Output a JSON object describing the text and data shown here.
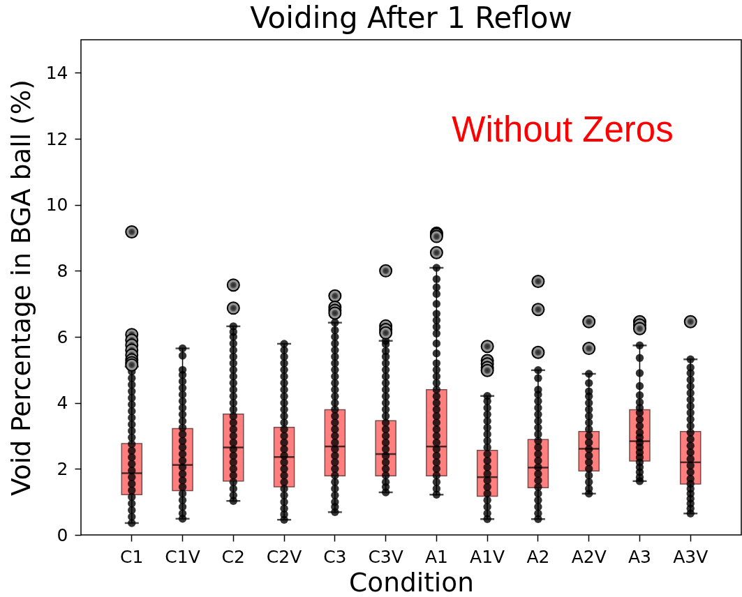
{
  "chart_data": {
    "type": "box",
    "title": "Voiding After 1 Reflow",
    "xlabel": "Condition",
    "ylabel": "Void Percentage in BGA ball (%)",
    "annotations": [
      "Without Zeros"
    ],
    "categories": [
      "C1",
      "C1V",
      "C2",
      "C2V",
      "C3",
      "C3V",
      "A1",
      "A1V",
      "A2",
      "A2V",
      "A3",
      "A3V"
    ],
    "ylim": [
      0,
      15
    ],
    "yticks": [
      0,
      2,
      4,
      6,
      8,
      10,
      12,
      14
    ],
    "series": [
      {
        "type": "box",
        "color": "#ff7f7f",
        "boxes": [
          {
            "low": 0.36,
            "q1": 1.22,
            "median": 1.87,
            "q3": 2.77,
            "high": 5.1,
            "outliers": [
              9.18,
              6.07,
              5.9,
              5.75,
              5.6,
              5.45,
              5.3,
              5.22,
              5.15
            ]
          },
          {
            "low": 0.49,
            "q1": 1.34,
            "median": 2.12,
            "q3": 3.22,
            "high": 5.65
          },
          {
            "low": 1.03,
            "q1": 1.63,
            "median": 2.65,
            "q3": 3.66,
            "high": 6.32,
            "outliers": [
              7.57,
              6.87
            ]
          },
          {
            "low": 0.46,
            "q1": 1.46,
            "median": 2.36,
            "q3": 3.26,
            "high": 5.79
          },
          {
            "low": 0.69,
            "q1": 1.79,
            "median": 2.68,
            "q3": 3.79,
            "high": 6.43,
            "outliers": [
              7.24,
              6.9,
              6.8,
              6.72
            ]
          },
          {
            "low": 1.29,
            "q1": 1.79,
            "median": 2.45,
            "q3": 3.46,
            "high": 5.88,
            "outliers": [
              8.0,
              6.33,
              6.22,
              6.12
            ]
          },
          {
            "low": 1.22,
            "q1": 1.79,
            "median": 2.68,
            "q3": 4.4,
            "high": 8.09,
            "outliers": [
              9.14,
              9.1,
              9.04,
              8.55
            ]
          },
          {
            "low": 0.48,
            "q1": 1.17,
            "median": 1.75,
            "q3": 2.56,
            "high": 4.21,
            "outliers": [
              5.71,
              5.28,
              5.18,
              5.07,
              4.98
            ]
          },
          {
            "low": 0.48,
            "q1": 1.43,
            "median": 2.04,
            "q3": 2.89,
            "high": 4.99,
            "outliers": [
              7.68,
              6.83,
              5.53
            ]
          },
          {
            "low": 1.25,
            "q1": 1.94,
            "median": 2.61,
            "q3": 3.13,
            "high": 4.88,
            "outliers": [
              6.46,
              5.65
            ]
          },
          {
            "low": 1.63,
            "q1": 2.24,
            "median": 2.84,
            "q3": 3.79,
            "high": 5.74,
            "outliers": [
              6.46,
              6.36,
              6.25
            ]
          },
          {
            "low": 0.65,
            "q1": 1.54,
            "median": 2.2,
            "q3": 3.13,
            "high": 5.32,
            "outliers": [
              6.46
            ]
          }
        ]
      },
      {
        "type": "scatter",
        "color": "#000000",
        "marker": "circle",
        "x": [
          "C1",
          "C1",
          "C1",
          "C1",
          "C1",
          "C1",
          "C1",
          "C1",
          "C1",
          "C1",
          "C1",
          "C1",
          "C1",
          "C1",
          "C1",
          "C1",
          "C1",
          "C1",
          "C1",
          "C1",
          "C1",
          "C1",
          "C1",
          "C1",
          "C1V",
          "C1V",
          "C1V",
          "C1V",
          "C1V",
          "C1V",
          "C1V",
          "C1V",
          "C1V",
          "C1V",
          "C1V",
          "C1V",
          "C1V",
          "C1V",
          "C1V",
          "C1V",
          "C1V",
          "C1V",
          "C1V",
          "C1V",
          "C1V",
          "C1V",
          "C1V",
          "C1V",
          "C1V",
          "C1V",
          "C2",
          "C2",
          "C2",
          "C2",
          "C2",
          "C2",
          "C2",
          "C2",
          "C2",
          "C2",
          "C2",
          "C2",
          "C2",
          "C2",
          "C2",
          "C2",
          "C2",
          "C2",
          "C2",
          "C2",
          "C2",
          "C2",
          "C2",
          "C2",
          "C2",
          "C2",
          "C2",
          "C2",
          "C2V",
          "C2V",
          "C2V",
          "C2V",
          "C2V",
          "C2V",
          "C2V",
          "C2V",
          "C2V",
          "C2V",
          "C2V",
          "C2V",
          "C2V",
          "C2V",
          "C2V",
          "C2V",
          "C2V",
          "C2V",
          "C2V",
          "C2V",
          "C2V",
          "C2V",
          "C2V",
          "C2V",
          "C2V",
          "C2V",
          "C2V",
          "C2V",
          "C3",
          "C3",
          "C3",
          "C3",
          "C3",
          "C3",
          "C3",
          "C3",
          "C3",
          "C3",
          "C3",
          "C3",
          "C3",
          "C3",
          "C3",
          "C3",
          "C3",
          "C3",
          "C3",
          "C3",
          "C3",
          "C3",
          "C3",
          "C3",
          "C3",
          "C3",
          "C3",
          "C3",
          "C3",
          "C3",
          "C3V",
          "C3V",
          "C3V",
          "C3V",
          "C3V",
          "C3V",
          "C3V",
          "C3V",
          "C3V",
          "C3V",
          "C3V",
          "C3V",
          "C3V",
          "C3V",
          "C3V",
          "C3V",
          "C3V",
          "C3V",
          "C3V",
          "C3V",
          "C3V",
          "C3V",
          "C3V",
          "C3V",
          "C3V",
          "A1",
          "A1",
          "A1",
          "A1",
          "A1",
          "A1",
          "A1",
          "A1",
          "A1",
          "A1",
          "A1",
          "A1",
          "A1",
          "A1",
          "A1",
          "A1",
          "A1",
          "A1",
          "A1",
          "A1",
          "A1",
          "A1",
          "A1",
          "A1",
          "A1",
          "A1",
          "A1",
          "A1",
          "A1",
          "A1",
          "A1",
          "A1",
          "A1V",
          "A1V",
          "A1V",
          "A1V",
          "A1V",
          "A1V",
          "A1V",
          "A1V",
          "A1V",
          "A1V",
          "A1V",
          "A1V",
          "A1V",
          "A1V",
          "A1V",
          "A1V",
          "A1V",
          "A1V",
          "A1V",
          "A1V",
          "A2",
          "A2",
          "A2",
          "A2",
          "A2",
          "A2",
          "A2",
          "A2",
          "A2",
          "A2",
          "A2",
          "A2",
          "A2",
          "A2",
          "A2",
          "A2",
          "A2",
          "A2",
          "A2",
          "A2",
          "A2",
          "A2",
          "A2",
          "A2V",
          "A2V",
          "A2V",
          "A2V",
          "A2V",
          "A2V",
          "A2V",
          "A2V",
          "A2V",
          "A2V",
          "A2V",
          "A2V",
          "A2V",
          "A2V",
          "A2V",
          "A2V",
          "A2V",
          "A2V",
          "A2V",
          "A3",
          "A3",
          "A3",
          "A3",
          "A3",
          "A3",
          "A3",
          "A3",
          "A3",
          "A3",
          "A3",
          "A3",
          "A3",
          "A3",
          "A3",
          "A3",
          "A3",
          "A3",
          "A3",
          "A3",
          "A3",
          "A3V",
          "A3V",
          "A3V",
          "A3V",
          "A3V",
          "A3V",
          "A3V",
          "A3V",
          "A3V",
          "A3V",
          "A3V",
          "A3V",
          "A3V",
          "A3V",
          "A3V",
          "A3V",
          "A3V",
          "A3V",
          "A3V",
          "A3V",
          "A3V",
          "A3V",
          "A3V",
          "A3V",
          "A3V",
          "A3V"
        ],
        "values": [
          0.36,
          0.55,
          0.75,
          0.95,
          1.15,
          1.35,
          1.55,
          1.75,
          1.95,
          2.15,
          2.35,
          2.55,
          2.75,
          2.95,
          3.15,
          3.35,
          3.55,
          3.75,
          3.95,
          4.15,
          4.35,
          4.55,
          4.75,
          4.95,
          0.49,
          0.65,
          0.85,
          1.05,
          1.25,
          1.45,
          1.65,
          1.85,
          2.05,
          2.25,
          2.45,
          2.65,
          2.85,
          3.05,
          3.25,
          3.45,
          3.65,
          3.85,
          4.05,
          4.25,
          4.45,
          4.65,
          4.85,
          5.0,
          5.43,
          5.65,
          1.03,
          1.2,
          1.4,
          1.6,
          1.8,
          2.0,
          2.2,
          2.4,
          2.6,
          2.8,
          3.0,
          3.2,
          3.4,
          3.6,
          3.8,
          4.0,
          4.2,
          4.4,
          4.6,
          4.8,
          5.0,
          5.2,
          5.4,
          5.6,
          5.8,
          6.0,
          6.15,
          6.32,
          0.46,
          0.62,
          0.8,
          1.0,
          1.2,
          1.4,
          1.6,
          1.8,
          2.0,
          2.2,
          2.4,
          2.6,
          2.8,
          3.0,
          3.2,
          3.4,
          3.6,
          3.8,
          4.0,
          4.2,
          4.4,
          4.6,
          4.8,
          5.0,
          5.2,
          5.4,
          5.6,
          5.79,
          0.69,
          0.85,
          1.0,
          1.2,
          1.4,
          1.6,
          1.8,
          2.0,
          2.2,
          2.4,
          2.6,
          2.8,
          3.0,
          3.2,
          3.4,
          3.6,
          3.8,
          4.0,
          4.2,
          4.4,
          4.6,
          4.8,
          5.0,
          5.2,
          5.4,
          5.6,
          5.8,
          6.0,
          6.2,
          6.43,
          1.29,
          1.45,
          1.6,
          1.8,
          2.0,
          2.2,
          2.4,
          2.6,
          2.8,
          3.0,
          3.2,
          3.4,
          3.6,
          3.8,
          4.0,
          4.2,
          4.4,
          4.6,
          4.8,
          5.0,
          5.2,
          5.4,
          5.57,
          5.78,
          5.88,
          1.22,
          1.4,
          1.6,
          1.8,
          2.0,
          2.2,
          2.4,
          2.6,
          2.8,
          3.0,
          3.2,
          3.4,
          3.6,
          3.8,
          4.0,
          4.2,
          4.4,
          4.6,
          4.8,
          5.0,
          5.2,
          5.5,
          5.8,
          6.1,
          6.3,
          6.5,
          6.7,
          7.0,
          7.3,
          7.5,
          7.75,
          8.09,
          0.48,
          0.65,
          0.85,
          1.05,
          1.25,
          1.45,
          1.65,
          1.85,
          2.05,
          2.25,
          2.45,
          2.65,
          2.85,
          3.05,
          3.25,
          3.45,
          3.65,
          3.85,
          4.05,
          4.21,
          0.48,
          0.65,
          0.85,
          1.05,
          1.25,
          1.45,
          1.65,
          1.85,
          2.05,
          2.25,
          2.45,
          2.65,
          2.85,
          3.05,
          3.25,
          3.45,
          3.65,
          3.85,
          4.05,
          4.25,
          4.4,
          4.75,
          4.99,
          1.25,
          1.4,
          1.6,
          1.8,
          2.0,
          2.2,
          2.4,
          2.6,
          2.8,
          3.0,
          3.2,
          3.4,
          3.6,
          3.8,
          4.0,
          4.2,
          4.35,
          4.6,
          4.88,
          1.63,
          1.75,
          1.9,
          2.05,
          2.2,
          2.35,
          2.5,
          2.65,
          2.8,
          2.95,
          3.1,
          3.3,
          3.5,
          3.7,
          3.85,
          4.02,
          4.23,
          4.51,
          4.9,
          5.36,
          5.74,
          0.65,
          0.8,
          0.95,
          1.1,
          1.25,
          1.4,
          1.55,
          1.7,
          1.9,
          2.1,
          2.3,
          2.5,
          2.7,
          2.9,
          3.1,
          3.3,
          3.5,
          3.7,
          3.9,
          4.1,
          4.3,
          4.5,
          4.7,
          4.9,
          5.07,
          5.32
        ]
      }
    ]
  }
}
